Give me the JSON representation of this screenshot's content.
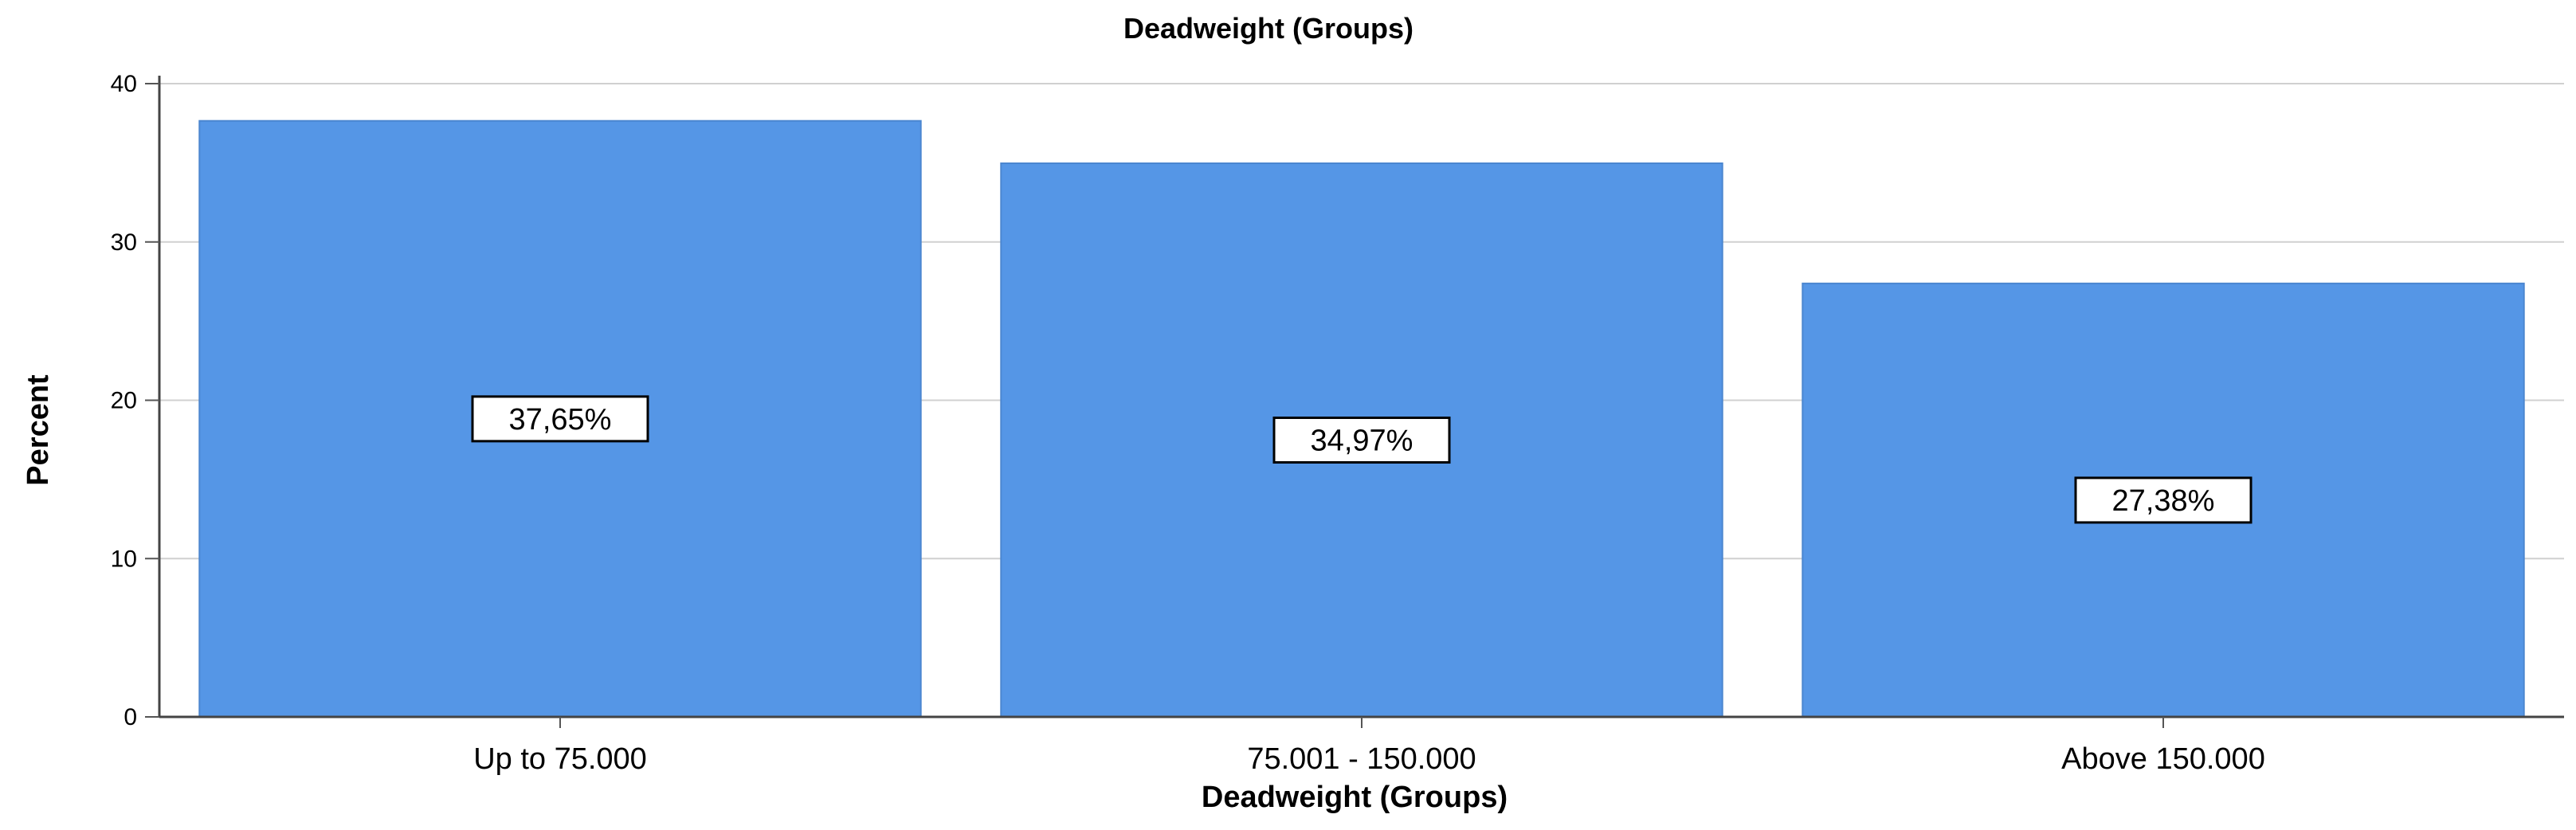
{
  "chart_data": {
    "type": "bar",
    "title": "Deadweight (Groups)",
    "xlabel": "Deadweight (Groups)",
    "ylabel": "Percent",
    "categories": [
      "Up to 75.000",
      "75.001 - 150.000",
      "Above 150.000"
    ],
    "values": [
      37.65,
      34.97,
      27.38
    ],
    "data_labels": [
      "37,65%",
      "34,97%",
      "27,38%"
    ],
    "ylim": [
      0,
      40
    ],
    "yticks": [
      0,
      10,
      20,
      30,
      40
    ],
    "grid": true,
    "legend": "none",
    "bar_color": "#5596e6"
  }
}
